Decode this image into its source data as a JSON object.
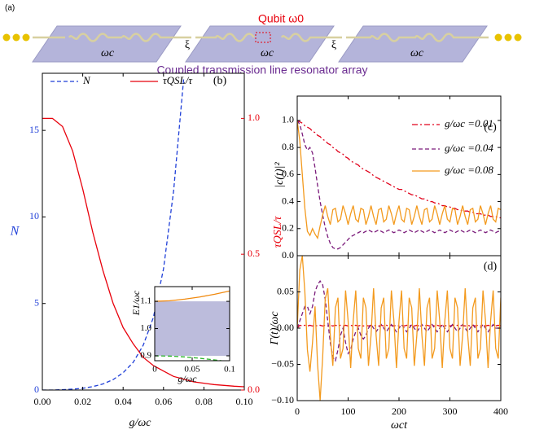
{
  "schematic": {
    "panel_label": "(a)",
    "qubit_label": "Qubit ω0",
    "coupling_labels": [
      "ξ",
      "ξ"
    ],
    "resonator_labels": [
      "ωc",
      "ωc",
      "ωc"
    ],
    "caption": "Coupled transmission line resonator array"
  },
  "chart_data": [
    {
      "type": "line",
      "panel_label": "(b)",
      "xlabel": "g/ωc",
      "ylabel": "N",
      "y2label": "τQSL/τ",
      "x": [
        0,
        0.005,
        0.01,
        0.015,
        0.02,
        0.025,
        0.03,
        0.035,
        0.04,
        0.045,
        0.05,
        0.055,
        0.06,
        0.065,
        0.07,
        0.075,
        0.08,
        0.085,
        0.09,
        0.095,
        0.1
      ],
      "xlim": [
        0,
        0.1
      ],
      "xticks": [
        {
          "value": 0,
          "label": "0.00"
        },
        {
          "value": 0.02,
          "label": "0.02"
        },
        {
          "value": 0.04,
          "label": "0.04"
        },
        {
          "value": 0.06,
          "label": "0.06"
        },
        {
          "value": 0.08,
          "label": "0.08"
        },
        {
          "value": 0.1,
          "label": "0.10"
        }
      ],
      "ylim": [
        0,
        18.3
      ],
      "yticks": [
        0,
        5,
        10,
        15
      ],
      "y2lim": [
        0,
        1.166
      ],
      "y2ticks": [
        {
          "value": 0,
          "label": "0.0"
        },
        {
          "value": 0.5,
          "label": "0.5"
        },
        {
          "value": 1,
          "label": "1.0"
        }
      ],
      "ycolor": "#1f3fd8",
      "y2color": "#e8000b",
      "series": [
        {
          "name": "N",
          "color": "#1f3fd8",
          "dash": "dashed",
          "values": [
            0,
            0,
            0.02,
            0.05,
            0.1,
            0.2,
            0.35,
            0.6,
            1.0,
            1.6,
            2.6,
            4.2,
            7.0,
            11.5,
            18,
            null,
            null,
            null,
            null,
            null,
            null
          ]
        },
        {
          "name": "τQSL/τ",
          "color": "#e8000b",
          "axis": "y2",
          "values": [
            1.0,
            1.0,
            0.97,
            0.88,
            0.74,
            0.58,
            0.44,
            0.32,
            0.23,
            0.17,
            0.12,
            0.09,
            0.07,
            0.05,
            0.04,
            0.03,
            0.025,
            0.02,
            0.017,
            0.014,
            0.012
          ]
        }
      ]
    },
    {
      "type": "line",
      "xlabel": "g/ωc",
      "ylabel": "E1/ωc",
      "x": [
        0,
        0.02,
        0.04,
        0.06,
        0.08,
        0.1
      ],
      "xlim": [
        0,
        0.1
      ],
      "xticks": [
        0,
        0.05,
        0.1
      ],
      "ylim": [
        0.882,
        1.154
      ],
      "yticks": [
        0.9,
        {
          "value": 1,
          "label": "1.0"
        },
        1.1
      ],
      "band": [
        0.9,
        1.1
      ],
      "band_color": "#bcbcdc",
      "series": [
        {
          "color": "#f08a10",
          "values": [
            1.1,
            1.102,
            1.108,
            1.116,
            1.126,
            1.138
          ]
        },
        {
          "color": "#2ab52a",
          "dash": "dashed",
          "values": [
            0.9,
            0.899,
            0.896,
            0.891,
            0.885,
            0.878
          ]
        }
      ]
    },
    {
      "type": "line",
      "panel_label": "(c)",
      "ylabel": "|c(t)|²",
      "x": [
        0,
        5,
        10,
        15,
        20,
        25,
        30,
        35,
        40,
        45,
        50,
        55,
        60,
        65,
        70,
        75,
        80,
        85,
        90,
        95,
        100,
        105,
        110,
        115,
        120,
        125,
        130,
        135,
        140,
        145,
        150,
        155,
        160,
        165,
        170,
        175,
        180,
        185,
        190,
        195,
        200,
        205,
        210,
        215,
        220,
        225,
        230,
        235,
        240,
        245,
        250,
        255,
        260,
        265,
        270,
        275,
        280,
        285,
        290,
        295,
        300,
        305,
        310,
        315,
        320,
        325,
        330,
        335,
        340,
        345,
        350,
        355,
        360,
        365,
        370,
        375,
        380,
        385,
        390,
        395,
        400
      ],
      "xlim": [
        0,
        400
      ],
      "xticks": [
        0,
        100,
        200,
        300,
        400
      ],
      "ylim": [
        0,
        1.18
      ],
      "yticks": [
        {
          "value": 0,
          "label": "0.0"
        },
        0.2,
        0.4,
        0.6,
        0.8,
        {
          "value": 1,
          "label": "1.0"
        }
      ],
      "series": [
        {
          "name": "g/ωc =0.01",
          "color": "#e0001a",
          "dash": "dashdot",
          "values": [
            1.0,
            0.99,
            0.98,
            0.96,
            0.95,
            0.94,
            0.92,
            0.91,
            0.89,
            0.88,
            0.86,
            0.85,
            0.83,
            0.82,
            0.8,
            0.79,
            0.77,
            0.76,
            0.75,
            0.73,
            0.72,
            0.7,
            0.69,
            0.68,
            0.67,
            0.65,
            0.64,
            0.63,
            0.62,
            0.61,
            0.59,
            0.58,
            0.57,
            0.56,
            0.55,
            0.54,
            0.53,
            0.52,
            0.51,
            0.5,
            0.49,
            0.49,
            0.48,
            0.47,
            0.46,
            0.45,
            0.45,
            0.44,
            0.43,
            0.42,
            0.42,
            0.41,
            0.4,
            0.4,
            0.39,
            0.39,
            0.38,
            0.37,
            0.37,
            0.36,
            0.36,
            0.35,
            0.35,
            0.34,
            0.34,
            0.33,
            0.33,
            0.33,
            0.32,
            0.32,
            0.31,
            0.31,
            0.31,
            0.3,
            0.3,
            0.3,
            0.29,
            0.29,
            0.29,
            0.28,
            0.28
          ]
        },
        {
          "name": "g/ωc =0.04",
          "color": "#7a1a7a",
          "dash": "dashed",
          "values": [
            1.0,
            0.97,
            0.9,
            0.82,
            0.78,
            0.8,
            0.76,
            0.65,
            0.52,
            0.4,
            0.3,
            0.21,
            0.14,
            0.09,
            0.06,
            0.05,
            0.05,
            0.06,
            0.08,
            0.1,
            0.12,
            0.14,
            0.15,
            0.16,
            0.17,
            0.18,
            0.17,
            0.18,
            0.19,
            0.18,
            0.17,
            0.18,
            0.19,
            0.18,
            0.17,
            0.18,
            0.19,
            0.18,
            0.17,
            0.18,
            0.19,
            0.18,
            0.17,
            0.18,
            0.19,
            0.18,
            0.17,
            0.18,
            0.19,
            0.18,
            0.17,
            0.18,
            0.19,
            0.18,
            0.17,
            0.18,
            0.19,
            0.18,
            0.17,
            0.18,
            0.19,
            0.18,
            0.17,
            0.18,
            0.19,
            0.18,
            0.17,
            0.18,
            0.19,
            0.18,
            0.17,
            0.18,
            0.19,
            0.18,
            0.17,
            0.18,
            0.19,
            0.18,
            0.17,
            0.18,
            0.18
          ]
        },
        {
          "name": "g/ωc =0.08",
          "color": "#f39a1e",
          "values": [
            1.0,
            0.85,
            0.6,
            0.35,
            0.18,
            0.15,
            0.2,
            0.16,
            0.13,
            0.22,
            0.3,
            0.37,
            0.29,
            0.23,
            0.34,
            0.35,
            0.25,
            0.27,
            0.37,
            0.31,
            0.23,
            0.31,
            0.37,
            0.27,
            0.25,
            0.35,
            0.34,
            0.23,
            0.29,
            0.37,
            0.29,
            0.23,
            0.34,
            0.35,
            0.25,
            0.27,
            0.37,
            0.31,
            0.23,
            0.31,
            0.37,
            0.27,
            0.25,
            0.35,
            0.34,
            0.23,
            0.29,
            0.37,
            0.29,
            0.23,
            0.34,
            0.35,
            0.25,
            0.27,
            0.37,
            0.31,
            0.23,
            0.31,
            0.37,
            0.27,
            0.25,
            0.35,
            0.34,
            0.23,
            0.29,
            0.37,
            0.29,
            0.23,
            0.34,
            0.35,
            0.25,
            0.27,
            0.37,
            0.31,
            0.23,
            0.31,
            0.37,
            0.27,
            0.25,
            0.35,
            0.34
          ]
        }
      ]
    },
    {
      "type": "line",
      "panel_label": "(d)",
      "xlabel": "ωct",
      "ylabel": "Γ(t)/ωc",
      "x": [
        0,
        5,
        10,
        15,
        20,
        25,
        30,
        35,
        40,
        45,
        50,
        55,
        60,
        65,
        70,
        75,
        80,
        85,
        90,
        95,
        100,
        105,
        110,
        115,
        120,
        125,
        130,
        135,
        140,
        145,
        150,
        155,
        160,
        165,
        170,
        175,
        180,
        185,
        190,
        195,
        200,
        205,
        210,
        215,
        220,
        225,
        230,
        235,
        240,
        245,
        250,
        255,
        260,
        265,
        270,
        275,
        280,
        285,
        290,
        295,
        300,
        305,
        310,
        315,
        320,
        325,
        330,
        335,
        340,
        345,
        350,
        355,
        360,
        365,
        370,
        375,
        380,
        385,
        390,
        395,
        400
      ],
      "xlim": [
        0,
        400
      ],
      "xticks": [
        0,
        100,
        200,
        300,
        400
      ],
      "ylim": [
        -0.1,
        0.1
      ],
      "yticks": [
        {
          "value": -0.1,
          "label": "−0.10"
        },
        {
          "value": -0.05,
          "label": "−0.05"
        },
        {
          "value": 0,
          "label": "0.00"
        },
        0.05
      ],
      "series": [
        {
          "color": "#e0001a",
          "dash": "dashdot",
          "values": [
            0,
            0.004,
            0.003,
            0.004,
            0.003,
            0.004,
            0.003,
            0.004,
            0.003,
            0.004,
            0.003,
            0.004,
            0.003,
            0.004,
            0.003,
            0.004,
            0.003,
            0.004,
            0.003,
            0.004,
            0.003,
            0.004,
            0.003,
            0.004,
            0.003,
            0.004,
            0.003,
            0.004,
            0.003,
            0.004,
            0.003,
            0.004,
            0.003,
            0.004,
            0.003,
            0.004,
            0.003,
            0.004,
            0.003,
            0.004,
            0.003,
            0.004,
            0.003,
            0.004,
            0.003,
            0.004,
            0.003,
            0.004,
            0.003,
            0.004,
            0.003,
            0.004,
            0.003,
            0.004,
            0.003,
            0.004,
            0.003,
            0.004,
            0.003,
            0.004,
            0.003,
            0.004,
            0.003,
            0.004,
            0.003,
            0.004,
            0.003,
            0.004,
            0.003,
            0.004,
            0.003,
            0.004,
            0.003,
            0.004,
            0.003,
            0.004,
            0.003,
            0.004,
            0.003,
            0.004,
            0.003
          ]
        },
        {
          "color": "#7a1a7a",
          "dash": "dashed",
          "values": [
            0,
            0.01,
            0.02,
            0.03,
            0.03,
            0.02,
            0.03,
            0.05,
            0.06,
            0.065,
            0.06,
            0.04,
            0.01,
            -0.02,
            -0.04,
            -0.045,
            -0.03,
            -0.01,
            0,
            -0.02,
            -0.035,
            -0.03,
            -0.015,
            -0.005,
            0,
            -0.01,
            -0.015,
            -0.01,
            0,
            0.005,
            0,
            -0.005,
            0,
            0.005,
            0,
            -0.005,
            0,
            0.005,
            0,
            -0.005,
            0,
            0.005,
            0,
            -0.005,
            0,
            0.005,
            0,
            -0.005,
            0,
            0.005,
            0,
            -0.005,
            0,
            0.005,
            0,
            -0.005,
            0,
            0.005,
            0,
            -0.005,
            0,
            0.005,
            0,
            -0.005,
            0,
            0.005,
            0,
            -0.005,
            0,
            0.005,
            0,
            -0.005,
            0,
            0.005,
            0,
            -0.005,
            0,
            0.005,
            0,
            0,
            0
          ]
        },
        {
          "color": "#f39a1e",
          "values": [
            0,
            0.08,
            0.1,
            0.05,
            -0.03,
            -0.06,
            -0.02,
            0.03,
            -0.05,
            -0.1,
            -0.04,
            0.04,
            0.055,
            -0.01,
            -0.052,
            0.028,
            0.042,
            -0.042,
            -0.028,
            0.052,
            0.01,
            -0.055,
            0.01,
            0.052,
            -0.028,
            -0.042,
            0.042,
            0.028,
            -0.052,
            -0.01,
            0.055,
            -0.01,
            -0.052,
            0.028,
            0.042,
            -0.042,
            -0.028,
            0.052,
            0.01,
            -0.055,
            0.01,
            0.052,
            -0.028,
            -0.042,
            0.042,
            0.028,
            -0.052,
            -0.01,
            0.055,
            -0.01,
            -0.052,
            0.028,
            0.042,
            -0.042,
            -0.028,
            0.052,
            0.01,
            -0.055,
            0.01,
            0.052,
            -0.028,
            -0.042,
            0.042,
            0.028,
            -0.052,
            -0.01,
            0.055,
            -0.01,
            -0.052,
            0.028,
            0.042,
            -0.042,
            -0.028,
            0.052,
            0.01,
            -0.055,
            0.01,
            0.052,
            -0.028,
            -0.042,
            0.042
          ]
        }
      ]
    }
  ]
}
